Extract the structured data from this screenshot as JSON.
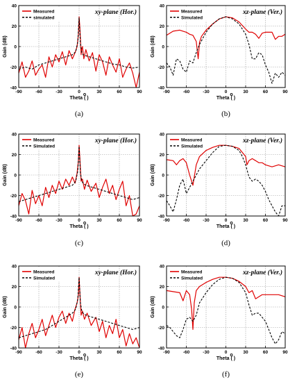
{
  "figure": {
    "colors": {
      "measured": "#e00000",
      "simulated": "#000000",
      "grid": "#9a9a9a"
    },
    "x_unit_superscript": "o"
  },
  "chart_data": [
    {
      "type": "line",
      "caption": "(a)",
      "title": "xy-plane (Hor.)",
      "xlabel": "Theta (  )",
      "ylabel": "Gain (dB)",
      "xlim": [
        -90,
        90
      ],
      "ylim": [
        -40,
        40
      ],
      "xticks": [
        -90,
        -60,
        -30,
        0,
        30,
        60,
        90
      ],
      "yticks": [
        -40,
        -20,
        0,
        20,
        40
      ],
      "grid": true,
      "legend_position": "top-left",
      "series": [
        {
          "name": "Measured",
          "style": "solid",
          "x": [
            -90,
            -85,
            -80,
            -75,
            -70,
            -65,
            -60,
            -55,
            -50,
            -45,
            -40,
            -35,
            -30,
            -25,
            -20,
            -15,
            -10,
            -6,
            -3,
            -1,
            0,
            1,
            2,
            3,
            4,
            5,
            7,
            10,
            15,
            20,
            25,
            30,
            35,
            40,
            45,
            50,
            55,
            60,
            65,
            70,
            75,
            80,
            85,
            90
          ],
          "y": [
            -26,
            -15,
            -30,
            -24,
            -14,
            -28,
            -22,
            -18,
            -30,
            -10,
            -20,
            -8,
            -15,
            -5,
            -18,
            -4,
            -12,
            -6,
            0,
            12,
            29,
            20,
            8,
            -8,
            -2,
            0,
            -12,
            -3,
            -14,
            -6,
            -24,
            -8,
            -15,
            -28,
            -10,
            -18,
            -25,
            -12,
            -30,
            -22,
            -16,
            -26,
            -40,
            -25
          ]
        },
        {
          "name": "simulated",
          "style": "dashed",
          "x": [
            -90,
            -80,
            -70,
            -60,
            -50,
            -40,
            -30,
            -20,
            -10,
            -5,
            -2,
            0,
            1,
            2,
            4,
            6,
            10,
            20,
            30,
            40,
            50,
            60,
            70,
            80,
            90
          ],
          "y": [
            -22,
            -20,
            -22,
            -18,
            -16,
            -14,
            -12,
            -10,
            -8,
            -5,
            5,
            28,
            15,
            3,
            -6,
            -8,
            -9,
            -11,
            -13,
            -15,
            -17,
            -18,
            -20,
            -21,
            -20
          ]
        }
      ]
    },
    {
      "type": "line",
      "caption": "(b)",
      "title": "xz-plane (Ver.)",
      "xlabel": "Theta (  )",
      "ylabel": "Gain (dB)",
      "xlim": [
        -90,
        90
      ],
      "ylim": [
        -40,
        40
      ],
      "xticks": [
        -90,
        -60,
        -30,
        0,
        30,
        60,
        90
      ],
      "yticks": [
        -40,
        -20,
        0,
        20,
        40
      ],
      "grid": true,
      "legend_position": "top-left",
      "series": [
        {
          "name": "Measured",
          "style": "solid",
          "x": [
            -90,
            -80,
            -70,
            -60,
            -55,
            -50,
            -45,
            -42,
            -40,
            -37,
            -30,
            -20,
            -10,
            0,
            10,
            20,
            30,
            35,
            40,
            45,
            50,
            55,
            60,
            70,
            75,
            80,
            85,
            90
          ],
          "y": [
            11,
            15,
            16,
            14,
            12,
            11,
            5,
            -12,
            4,
            10,
            16,
            22,
            27,
            29,
            28,
            24,
            17,
            14,
            14,
            12,
            8,
            13,
            14,
            14,
            7,
            10,
            10,
            12
          ]
        },
        {
          "name": "Simulated",
          "style": "dashed",
          "x": [
            -90,
            -85,
            -80,
            -75,
            -70,
            -65,
            -60,
            -55,
            -50,
            -45,
            -40,
            -30,
            -20,
            -10,
            0,
            10,
            20,
            30,
            35,
            40,
            45,
            50,
            55,
            60,
            65,
            70,
            75,
            80,
            85,
            90
          ],
          "y": [
            -16,
            -20,
            -28,
            -12,
            -14,
            -22,
            -25,
            -14,
            -16,
            -6,
            2,
            14,
            22,
            27,
            29,
            27,
            22,
            12,
            2,
            -12,
            -12,
            -6,
            -8,
            -18,
            -25,
            -36,
            -26,
            -30,
            -25,
            -28
          ]
        }
      ]
    },
    {
      "type": "line",
      "caption": "(c)",
      "title": "xy-plane (Hor.)",
      "xlabel": "Theta (  )",
      "ylabel": "Gain (dB)",
      "xlim": [
        -90,
        90
      ],
      "ylim": [
        -40,
        40
      ],
      "xticks": [
        -90,
        -60,
        -30,
        0,
        30,
        60,
        90
      ],
      "yticks": [
        -40,
        -20,
        0,
        20,
        40
      ],
      "grid": true,
      "legend_position": "top-left",
      "series": [
        {
          "name": "Measured",
          "style": "solid",
          "x": [
            -90,
            -85,
            -80,
            -75,
            -70,
            -65,
            -60,
            -55,
            -50,
            -45,
            -40,
            -35,
            -30,
            -25,
            -20,
            -15,
            -10,
            -6,
            -3,
            -1,
            0,
            1,
            2,
            3,
            5,
            8,
            12,
            18,
            25,
            30,
            35,
            40,
            45,
            50,
            55,
            60,
            65,
            70,
            75,
            80,
            85,
            90
          ],
          "y": [
            -30,
            -18,
            -25,
            -38,
            -15,
            -28,
            -20,
            -30,
            -12,
            -22,
            -10,
            -18,
            -6,
            -14,
            -4,
            -10,
            -2,
            -8,
            2,
            14,
            29,
            18,
            6,
            -6,
            -4,
            -14,
            -5,
            -16,
            -8,
            -22,
            -12,
            -4,
            -18,
            -10,
            -24,
            -14,
            -6,
            -30,
            -20,
            -40,
            -38,
            -30
          ]
        },
        {
          "name": "Simulated",
          "style": "dashed",
          "x": [
            -90,
            -80,
            -70,
            -60,
            -50,
            -40,
            -30,
            -20,
            -10,
            -5,
            -2,
            0,
            1,
            2,
            4,
            6,
            10,
            20,
            30,
            40,
            50,
            60,
            70,
            80,
            90
          ],
          "y": [
            -26,
            -24,
            -22,
            -20,
            -18,
            -16,
            -14,
            -12,
            -10,
            -6,
            4,
            28,
            14,
            2,
            -6,
            -8,
            -10,
            -12,
            -14,
            -16,
            -18,
            -20,
            -22,
            -24,
            -22
          ]
        }
      ]
    },
    {
      "type": "line",
      "caption": "(d)",
      "title": "xz-plane (Ver.)",
      "xlabel": "Theta (  )",
      "ylabel": "Gain (dB)",
      "xlim": [
        -90,
        90
      ],
      "ylim": [
        -40,
        40
      ],
      "xticks": [
        -90,
        -60,
        -30,
        0,
        30,
        60,
        90
      ],
      "yticks": [
        -40,
        -20,
        0,
        20,
        40
      ],
      "grid": true,
      "legend_position": "top-left",
      "series": [
        {
          "name": "Measured",
          "style": "solid",
          "x": [
            -90,
            -80,
            -75,
            -70,
            -65,
            -60,
            -55,
            -50,
            -45,
            -40,
            -30,
            -20,
            -10,
            0,
            10,
            20,
            30,
            32,
            35,
            40,
            45,
            50,
            55,
            60,
            70,
            80,
            90
          ],
          "y": [
            15,
            14,
            10,
            14,
            16,
            12,
            0,
            -10,
            10,
            18,
            24,
            27,
            29,
            29,
            28,
            26,
            18,
            10,
            14,
            16,
            14,
            12,
            12,
            10,
            8,
            10,
            8
          ]
        },
        {
          "name": "Simulated",
          "style": "dashed",
          "x": [
            -90,
            -85,
            -80,
            -75,
            -70,
            -65,
            -60,
            -55,
            -50,
            -40,
            -30,
            -20,
            -10,
            0,
            10,
            20,
            25,
            30,
            35,
            40,
            45,
            50,
            55,
            60,
            65,
            70,
            75,
            80,
            85,
            90
          ],
          "y": [
            -25,
            -30,
            -36,
            -24,
            -10,
            -4,
            -18,
            -12,
            -6,
            6,
            14,
            22,
            28,
            29,
            28,
            24,
            18,
            10,
            -2,
            -6,
            -4,
            -6,
            -10,
            -16,
            -24,
            -30,
            -36,
            -40,
            -30,
            -30
          ]
        }
      ]
    },
    {
      "type": "line",
      "caption": "(e)",
      "title": "xy-plane (Hor.)",
      "xlabel": "Theta (  )",
      "ylabel": "Gain (dB)",
      "xlim": [
        -90,
        90
      ],
      "ylim": [
        -40,
        40
      ],
      "xticks": [
        -90,
        -60,
        -30,
        0,
        30,
        60,
        90
      ],
      "yticks": [
        -40,
        -20,
        0,
        20,
        40
      ],
      "grid": true,
      "legend_position": "top-left",
      "series": [
        {
          "name": "Measured",
          "style": "solid",
          "x": [
            -90,
            -85,
            -80,
            -75,
            -70,
            -65,
            -60,
            -55,
            -50,
            -45,
            -40,
            -35,
            -30,
            -25,
            -20,
            -15,
            -10,
            -6,
            -3,
            -1,
            0,
            1,
            2,
            3,
            5,
            8,
            12,
            18,
            25,
            30,
            35,
            40,
            45,
            50,
            55,
            60,
            65,
            70,
            75,
            80,
            85,
            90
          ],
          "y": [
            -32,
            -20,
            -40,
            -26,
            -16,
            -30,
            -22,
            -12,
            -28,
            -18,
            -8,
            -20,
            -10,
            -4,
            -16,
            -6,
            -14,
            -2,
            4,
            12,
            29,
            16,
            4,
            -8,
            -4,
            -12,
            -6,
            -18,
            -10,
            -24,
            -14,
            -30,
            -18,
            -26,
            -12,
            -30,
            -22,
            -38,
            -26,
            -36,
            -30,
            -40
          ]
        },
        {
          "name": "Simulated",
          "style": "dashed",
          "x": [
            -90,
            -80,
            -70,
            -60,
            -50,
            -40,
            -30,
            -20,
            -10,
            -5,
            -2,
            0,
            1,
            2,
            4,
            6,
            10,
            20,
            30,
            40,
            50,
            60,
            70,
            80,
            90
          ],
          "y": [
            -30,
            -28,
            -26,
            -24,
            -22,
            -18,
            -14,
            -10,
            -6,
            -2,
            8,
            29,
            16,
            4,
            -4,
            -6,
            -8,
            -10,
            -12,
            -14,
            -16,
            -18,
            -20,
            -22,
            -20
          ]
        }
      ]
    },
    {
      "type": "line",
      "caption": "(f)",
      "title": "xz-plane (Ver.)",
      "xlabel": "Theta (  )",
      "ylabel": "Gain (dB)",
      "xlim": [
        -90,
        90
      ],
      "ylim": [
        -40,
        40
      ],
      "xticks": [
        -90,
        -60,
        -30,
        0,
        30,
        60,
        90
      ],
      "yticks": [
        -40,
        -20,
        0,
        20,
        40
      ],
      "grid": true,
      "legend_position": "top-left",
      "series": [
        {
          "name": "Measured",
          "style": "solid",
          "x": [
            -90,
            -80,
            -70,
            -65,
            -60,
            -55,
            -52,
            -50,
            -48,
            -45,
            -40,
            -30,
            -20,
            -10,
            0,
            10,
            20,
            30,
            35,
            40,
            45,
            50,
            55,
            60,
            70,
            80,
            90
          ],
          "y": [
            16,
            15,
            14,
            6,
            16,
            12,
            -2,
            -22,
            4,
            16,
            20,
            24,
            27,
            29,
            29,
            28,
            25,
            20,
            14,
            16,
            8,
            10,
            12,
            12,
            12,
            12,
            10
          ]
        },
        {
          "name": "Simulated",
          "style": "dashed",
          "x": [
            -90,
            -85,
            -80,
            -75,
            -70,
            -65,
            -60,
            -55,
            -50,
            -45,
            -40,
            -30,
            -20,
            -10,
            0,
            10,
            20,
            30,
            35,
            40,
            45,
            50,
            55,
            60,
            65,
            70,
            75,
            80,
            85,
            90
          ],
          "y": [
            -18,
            -20,
            -24,
            -28,
            -30,
            -22,
            -12,
            -10,
            -14,
            -8,
            4,
            14,
            22,
            27,
            29,
            28,
            24,
            14,
            2,
            -8,
            -6,
            -6,
            -10,
            -14,
            -22,
            -30,
            -36,
            -32,
            -24,
            -26
          ]
        }
      ]
    }
  ]
}
